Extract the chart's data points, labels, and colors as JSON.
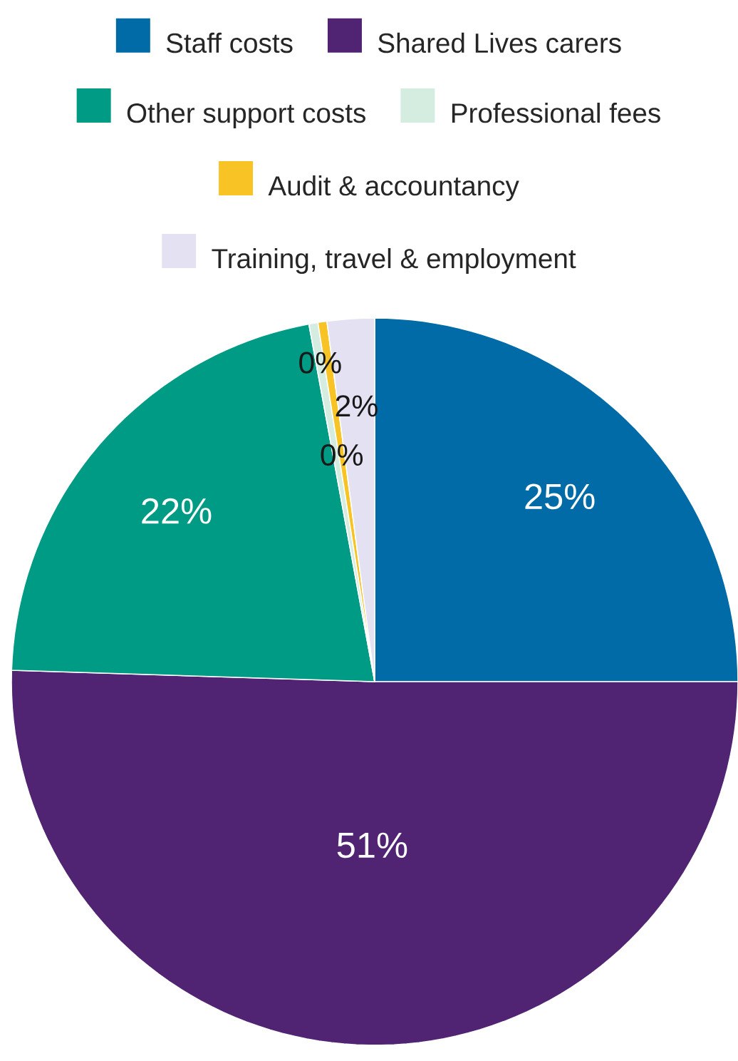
{
  "chart_data": {
    "type": "pie",
    "categories": [
      "Staff costs",
      "Shared Lives carers",
      "Other support costs",
      "Professional fees",
      "Audit & accountancy",
      "Training, travel & employment"
    ],
    "values": [
      25,
      50.5,
      21.6,
      0.4,
      0.4,
      2.1
    ],
    "value_labels": [
      "25%",
      "51%",
      "22%",
      "0%",
      "0%",
      "2%"
    ],
    "colors": [
      "#006ba6",
      "#512373",
      "#009b85",
      "#d5ede1",
      "#f7c325",
      "#e3e1f2"
    ],
    "legend": "top"
  }
}
